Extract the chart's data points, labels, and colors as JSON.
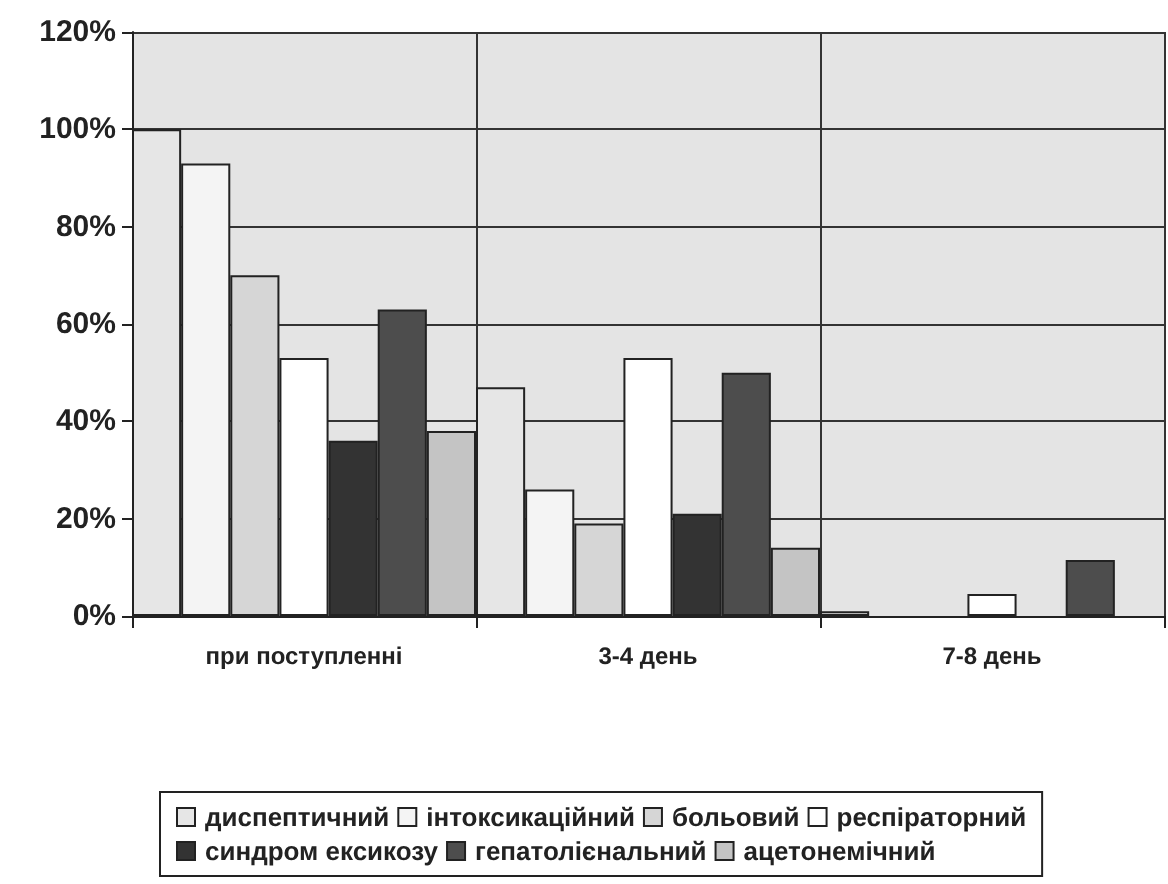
{
  "chart_data": {
    "type": "bar",
    "categories": [
      "при поступленні",
      "3-4 день",
      "7-8 день"
    ],
    "series": [
      {
        "name": "диспептичний",
        "color": "#e6e6e6",
        "values": [
          100,
          47,
          1
        ]
      },
      {
        "name": "інтоксикаційний",
        "color": "#f4f4f4",
        "values": [
          93,
          26,
          0
        ]
      },
      {
        "name": "больовий",
        "color": "#d6d6d6",
        "values": [
          70,
          19,
          0
        ]
      },
      {
        "name": "респіраторний",
        "color": "#ffffff",
        "values": [
          53,
          53,
          4.5
        ]
      },
      {
        "name": "синдром ексикозу",
        "color": "#333333",
        "values": [
          36,
          21,
          0
        ]
      },
      {
        "name": "гепатолієнальний",
        "color": "#4d4d4d",
        "values": [
          63,
          50,
          11.5
        ]
      },
      {
        "name": "ацетонемічний",
        "color": "#c4c4c4",
        "values": [
          38,
          14,
          0
        ]
      }
    ],
    "ylim": [
      0,
      120
    ],
    "yticks": [
      {
        "value": 0,
        "label": "0%"
      },
      {
        "value": 20,
        "label": "20%"
      },
      {
        "value": 40,
        "label": "40%"
      },
      {
        "value": 60,
        "label": "60%"
      },
      {
        "value": 80,
        "label": "80%"
      },
      {
        "value": 100,
        "label": "100%"
      },
      {
        "value": 120,
        "label": "120%"
      }
    ],
    "grid": true,
    "legend": "bottom"
  }
}
